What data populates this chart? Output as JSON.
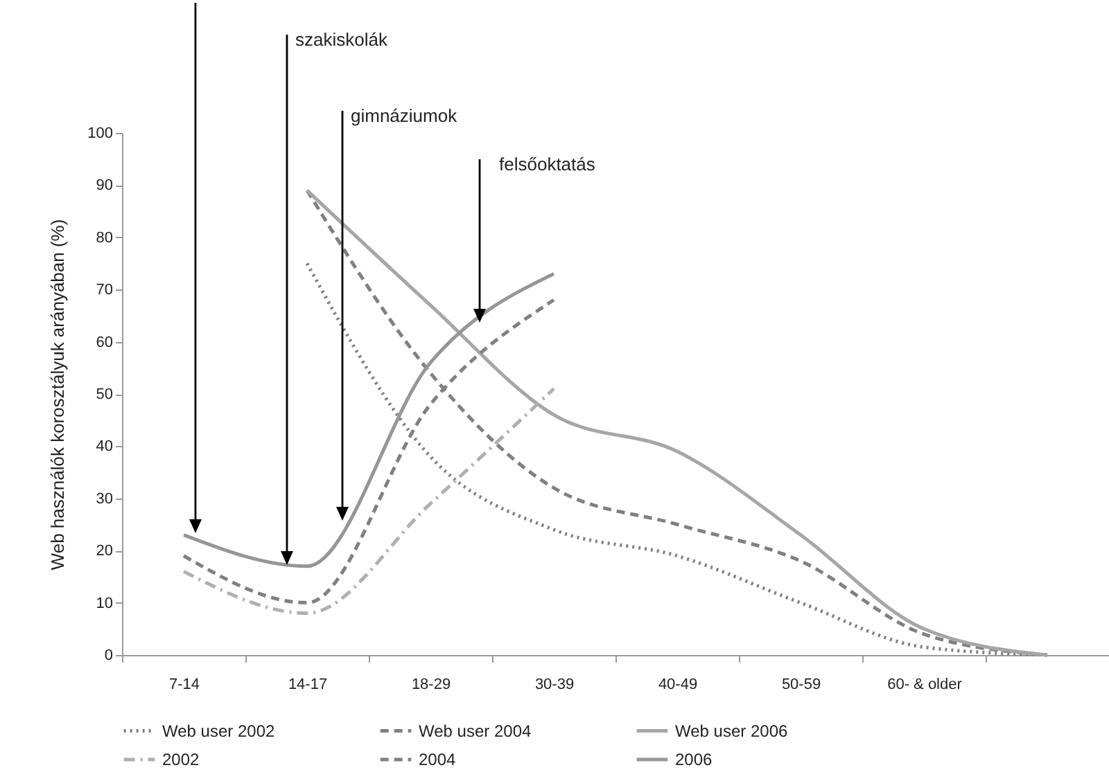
{
  "chart_data": {
    "type": "line",
    "ylabel": "Web használók korosztályuk arányában (%)",
    "categories": [
      "7-14",
      "14-17",
      "18-29",
      "30-39",
      "40-49",
      "50-59",
      "60- & older",
      null
    ],
    "series": [
      {
        "name": "Web user 2002",
        "color": "#808080",
        "line_style": "dotted",
        "values": [
          null,
          75,
          38,
          24,
          19,
          10,
          1.5,
          0
        ]
      },
      {
        "name": "Web user 2004",
        "color": "#808080",
        "line_style": "dashed",
        "values": [
          null,
          89,
          54,
          32,
          25,
          18,
          4,
          0
        ]
      },
      {
        "name": "Web user 2006",
        "color": "#a6a6a6",
        "line_style": "solid",
        "values": [
          null,
          89,
          67,
          46,
          39,
          23,
          5,
          0
        ]
      },
      {
        "name": "2002",
        "color": "#b0b0b0",
        "line_style": "dashdot",
        "values": [
          16,
          8,
          29,
          51,
          null,
          null,
          null,
          null
        ]
      },
      {
        "name": "2004",
        "color": "#808080",
        "line_style": "dashed",
        "values": [
          19,
          10,
          48,
          68,
          null,
          null,
          null,
          null
        ]
      },
      {
        "name": "2006",
        "color": "#969696",
        "line_style": "solid",
        "values": [
          23,
          17,
          56,
          73,
          null,
          null,
          null,
          null
        ]
      }
    ],
    "ylim": [
      0,
      100
    ],
    "yticks": [
      0,
      10,
      20,
      30,
      40,
      50,
      60,
      70,
      80,
      90,
      100
    ],
    "grid": false,
    "legend": "bottom",
    "marker": "none",
    "annotations": [
      "szakiskolák",
      "gimnáziumok",
      "felsőoktatás"
    ]
  }
}
